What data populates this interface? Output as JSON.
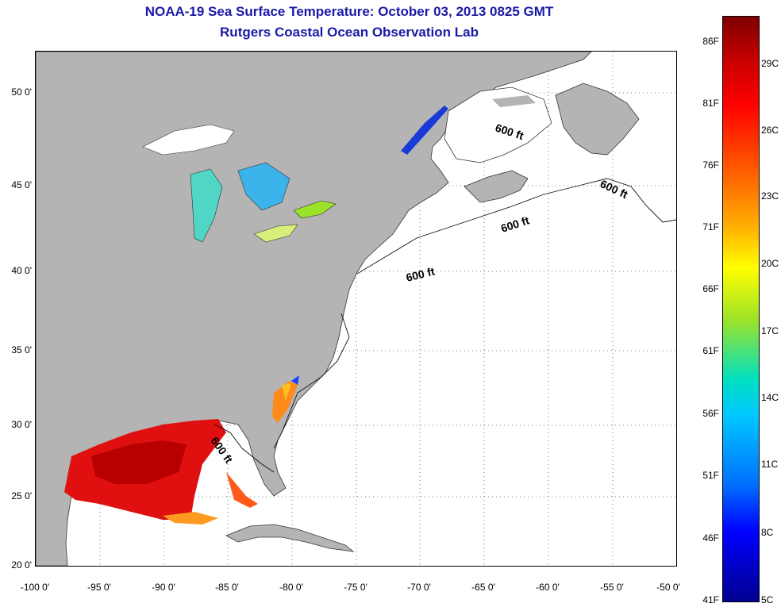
{
  "header": {
    "title": "NOAA-19 Sea Surface Temperature:  October 03, 2013 0825 GMT",
    "subtitle": "Rutgers Coastal Ocean Observation Lab"
  },
  "map": {
    "lat_ticks": [
      "50 0'",
      "45 0'",
      "40 0'",
      "35 0'",
      "30 0'",
      "25 0'",
      "20 0'"
    ],
    "lon_ticks": [
      "-100 0'",
      "-95 0'",
      "-90 0'",
      "-85 0'",
      "-80 0'",
      "-75 0'",
      "-70 0'",
      "-65 0'",
      "-60 0'",
      "-55 0'",
      "-50 0'"
    ],
    "isobath_labels": [
      "600 ft",
      "600 ft",
      "600 ft",
      "600 ft",
      "600 ft"
    ],
    "colors": {
      "land": "#b4b4b4",
      "ocean": "#ffffff",
      "grid": "#555555"
    }
  },
  "colorbar": {
    "fahrenheit": [
      "86F",
      "81F",
      "76F",
      "71F",
      "66F",
      "61F",
      "56F",
      "51F",
      "46F",
      "41F"
    ],
    "celsius": [
      "29C",
      "26C",
      "23C",
      "20C",
      "17C",
      "14C",
      "11C",
      "8C",
      "5C"
    ]
  }
}
